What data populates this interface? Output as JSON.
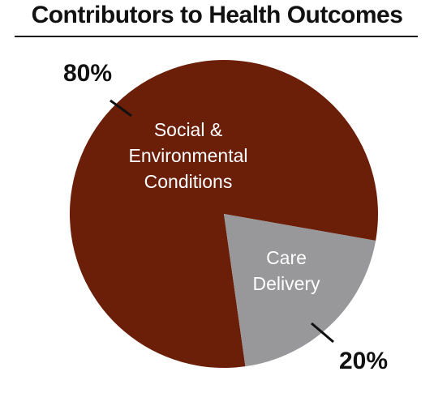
{
  "chart_data": {
    "type": "pie",
    "title": "Contributors to Health Outcomes",
    "slices": [
      {
        "label_lines": [
          "Social &",
          "Environmental",
          "Conditions"
        ],
        "value": 80,
        "value_label": "80%",
        "color": "#6b1e08"
      },
      {
        "label_lines": [
          "Care",
          "Delivery"
        ],
        "value": 20,
        "value_label": "20%",
        "color": "#98989a"
      }
    ]
  }
}
